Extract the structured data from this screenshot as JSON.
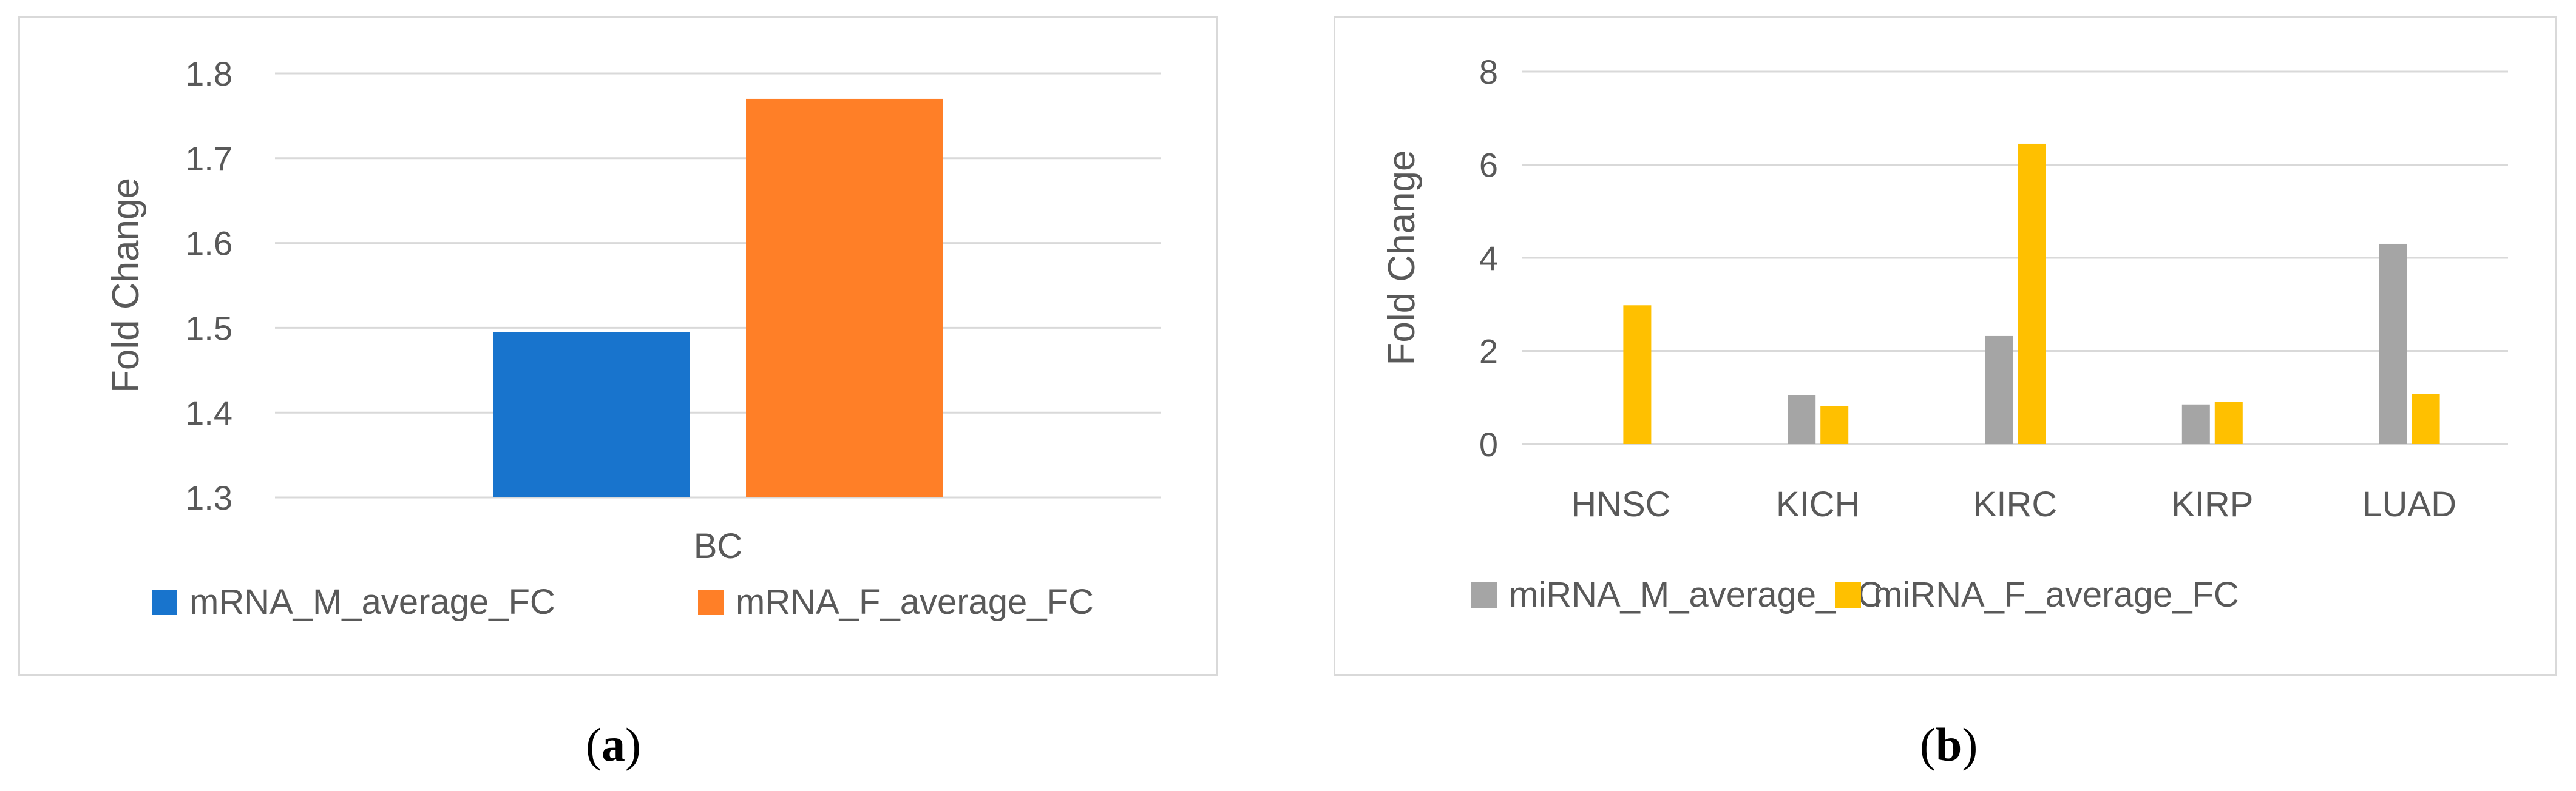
{
  "chart_data": [
    {
      "type": "bar",
      "panel_label": "a",
      "categories": [
        "BC"
      ],
      "series": [
        {
          "name": "mRNA_M_average_FC",
          "values": [
            1.495
          ],
          "color": "#1874cd"
        },
        {
          "name": "mRNA_F_average_FC",
          "values": [
            1.77
          ],
          "color": "#ff7f27"
        }
      ],
      "title": "",
      "xlabel": "",
      "ylabel": "Fold Change",
      "ylim": [
        1.3,
        1.8
      ],
      "yticks": [
        "1.3",
        "1.4",
        "1.5",
        "1.6",
        "1.7",
        "1.8"
      ],
      "grid": true,
      "legend": "bottom"
    },
    {
      "type": "bar",
      "panel_label": "b",
      "categories": [
        "HNSC",
        "KICH",
        "KIRC",
        "KIRP",
        "LUAD"
      ],
      "series": [
        {
          "name": "miRNA_M_average_FC",
          "values": [
            0,
            1.05,
            2.32,
            0.85,
            4.3
          ],
          "color": "#a5a5a5"
        },
        {
          "name": "miRNA_F_average_FC",
          "values": [
            2.98,
            0.82,
            6.45,
            0.9,
            1.08
          ],
          "color": "#ffc000"
        }
      ],
      "title": "",
      "xlabel": "",
      "ylabel": "Fold Change",
      "ylim": [
        0,
        8
      ],
      "yticks": [
        "0",
        "2",
        "4",
        "6",
        "8"
      ],
      "grid": true,
      "legend": "bottom"
    }
  ]
}
